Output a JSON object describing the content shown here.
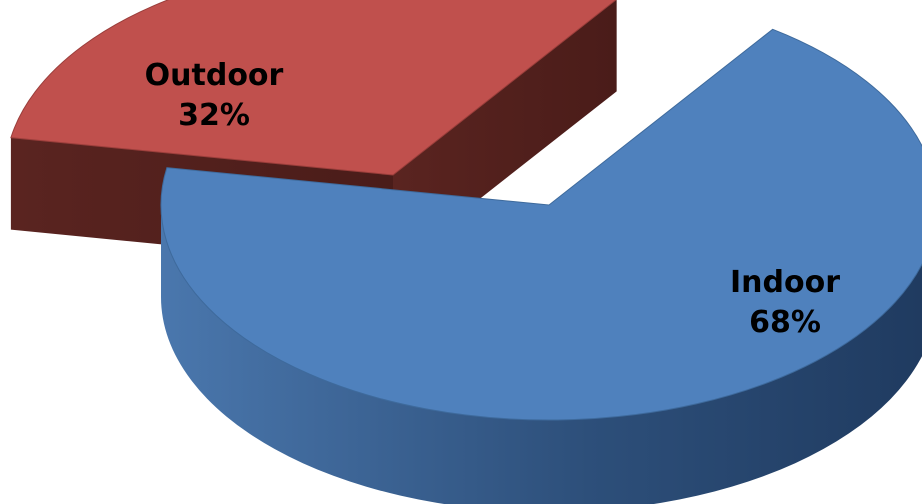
{
  "chart_data": {
    "type": "pie",
    "style": "3d-exploded",
    "slices": [
      {
        "label": "Indoor",
        "value": 68,
        "value_label": "68%",
        "color": "#4f81bd"
      },
      {
        "label": "Outdoor",
        "value": 32,
        "value_label": "32%",
        "color": "#c0504d"
      }
    ]
  }
}
